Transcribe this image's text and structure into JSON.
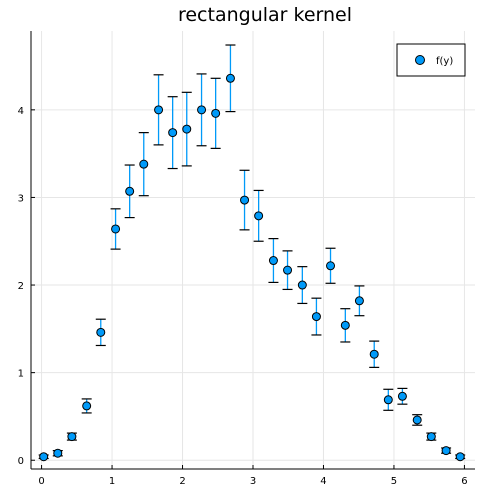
{
  "chart_data": {
    "type": "scatter",
    "title": "rectangular kernel",
    "xlabel": "",
    "ylabel": "",
    "xlim": [
      -0.15,
      6.15
    ],
    "ylim": [
      -0.1,
      4.9
    ],
    "grid": true,
    "legend_position": "top-right",
    "x_ticks": [
      0,
      1,
      2,
      3,
      4,
      5,
      6
    ],
    "x_tick_labels": [
      "0",
      "1",
      "2",
      "3",
      "4",
      "5",
      "6"
    ],
    "y_ticks": [
      0,
      1,
      2,
      3,
      4
    ],
    "y_tick_labels": [
      "0",
      "1",
      "2",
      "3",
      "4"
    ],
    "series": [
      {
        "name": "f(y)",
        "color": "#009AF9",
        "x": [
          0.03,
          0.23,
          0.43,
          0.64,
          0.84,
          1.05,
          1.25,
          1.45,
          1.66,
          1.86,
          2.06,
          2.27,
          2.47,
          2.68,
          2.88,
          3.08,
          3.29,
          3.49,
          3.7,
          3.9,
          4.1,
          4.31,
          4.51,
          4.72,
          4.92,
          5.12,
          5.33,
          5.53,
          5.74,
          5.94
        ],
        "y": [
          0.04,
          0.08,
          0.27,
          0.62,
          1.46,
          2.64,
          3.07,
          3.38,
          4.0,
          3.74,
          3.78,
          4.0,
          3.96,
          4.36,
          2.97,
          2.79,
          2.28,
          2.17,
          2.0,
          1.64,
          2.22,
          1.54,
          1.82,
          1.21,
          0.69,
          0.73,
          0.46,
          0.27,
          0.11,
          0.04
        ],
        "err": [
          0.02,
          0.03,
          0.04,
          0.08,
          0.15,
          0.23,
          0.3,
          0.36,
          0.4,
          0.41,
          0.42,
          0.41,
          0.4,
          0.38,
          0.34,
          0.29,
          0.25,
          0.22,
          0.21,
          0.21,
          0.2,
          0.19,
          0.17,
          0.15,
          0.12,
          0.09,
          0.06,
          0.04,
          0.03,
          0.02
        ]
      }
    ]
  },
  "colors": {
    "marker": "#009AF9",
    "errorbar_line": "#009AF9",
    "errorbar_cap": "#000000",
    "grid": "#e6e6e6",
    "axis": "#000000"
  }
}
